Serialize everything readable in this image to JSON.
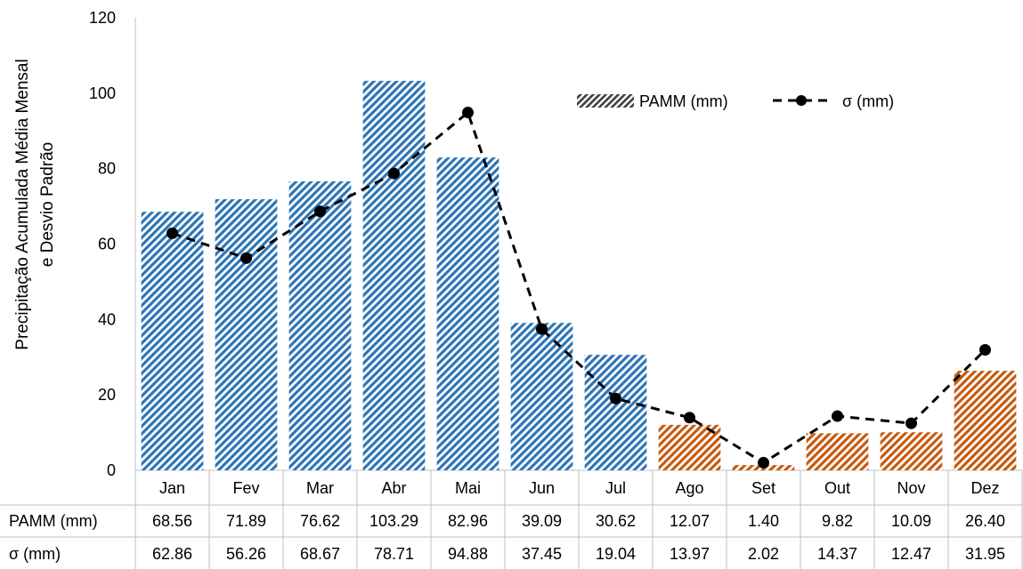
{
  "chart_data": {
    "type": "bar",
    "ylabel_lines": [
      "Precipitação Acumulada Média Mensal",
      "e Desvio Padrão"
    ],
    "ylim": [
      0,
      120
    ],
    "yticks": [
      0,
      20,
      40,
      60,
      80,
      100,
      120
    ],
    "grid": false,
    "legend_position": "top-right",
    "categories": [
      "Jan",
      "Fev",
      "Mar",
      "Abr",
      "Mai",
      "Jun",
      "Jul",
      "Ago",
      "Set",
      "Out",
      "Nov",
      "Dez"
    ],
    "series": [
      {
        "name": "PAMM (mm)",
        "kind": "bar",
        "values": [
          68.56,
          71.89,
          76.62,
          103.29,
          82.96,
          39.09,
          30.62,
          12.07,
          1.4,
          9.82,
          10.09,
          26.4
        ],
        "labels": [
          "68.56",
          "71.89",
          "76.62",
          "103.29",
          "82.96",
          "39.09",
          "30.62",
          "12.07",
          "1.40",
          "9.82",
          "10.09",
          "26.40"
        ]
      },
      {
        "name": "σ (mm)",
        "kind": "line-dashed-markers",
        "values": [
          62.86,
          56.26,
          68.67,
          78.71,
          94.88,
          37.45,
          19.04,
          13.97,
          2.02,
          14.37,
          12.47,
          31.95
        ],
        "labels": [
          "62.86",
          "56.26",
          "68.67",
          "78.71",
          "94.88",
          "37.45",
          "19.04",
          "13.97",
          "2.02",
          "14.37",
          "12.47",
          "31.95"
        ]
      }
    ],
    "colors": {
      "wet_season_bars": "#2e75b6",
      "dry_season_bars": "#c55a11",
      "line": "#000000",
      "legend_bar_pattern": "#404040"
    },
    "dry_season_months": [
      "Ago",
      "Set",
      "Out",
      "Nov",
      "Dez"
    ]
  }
}
